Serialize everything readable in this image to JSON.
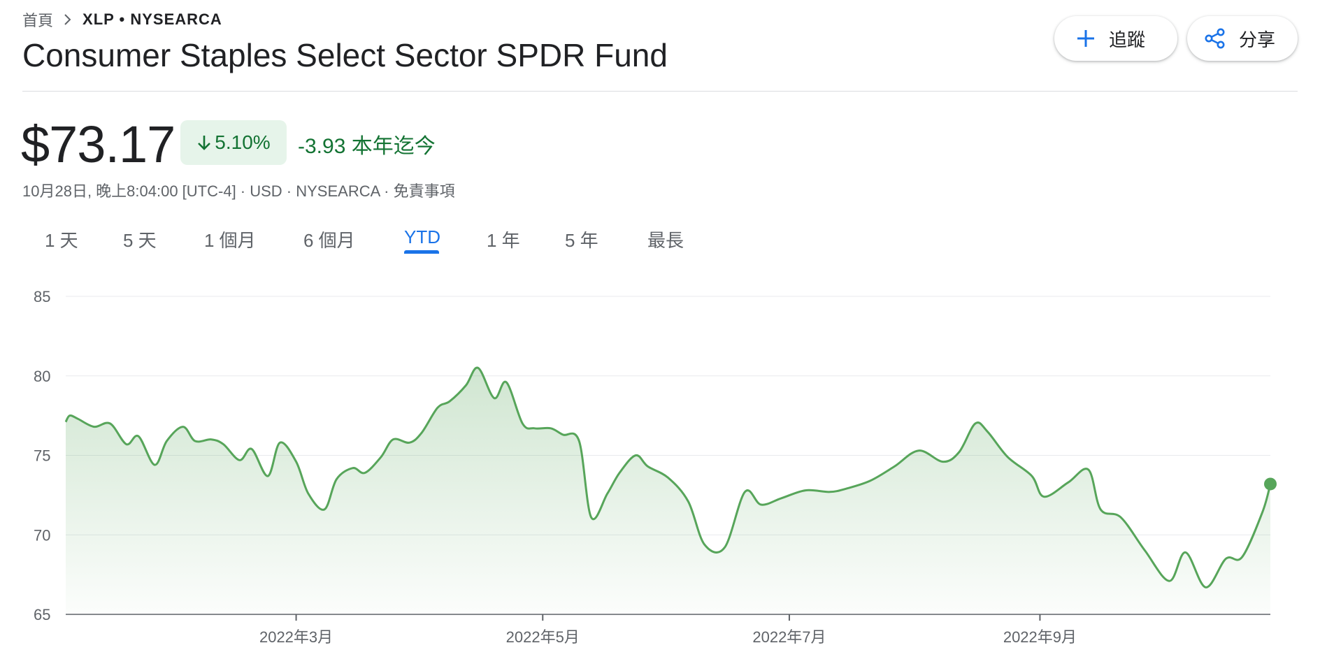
{
  "breadcrumb": {
    "home": "首頁",
    "ticker": "XLP • NYSEARCA"
  },
  "title": "Consumer Staples Select Sector SPDR Fund",
  "actions": {
    "follow_label": "追蹤",
    "share_label": "分享"
  },
  "quote": {
    "price": "$73.17",
    "change_percent": "5.10%",
    "change_text": "-3.93 本年迄今",
    "meta": "10月28日, 晚上8:04:00 [UTC-4] · USD · NYSEARCA · 免責事項",
    "direction": "down"
  },
  "tabs": [
    {
      "label": "1 天",
      "active": false
    },
    {
      "label": "5 天",
      "active": false
    },
    {
      "label": "1 個月",
      "active": false
    },
    {
      "label": "6 個月",
      "active": false
    },
    {
      "label": "YTD",
      "active": true
    },
    {
      "label": "1 年",
      "active": false
    },
    {
      "label": "5 年",
      "active": false
    },
    {
      "label": "最長",
      "active": false
    }
  ],
  "colors": {
    "line": "#57a55a",
    "positive": "#137333",
    "accent": "#1a73e8"
  },
  "icons": {
    "follow": "plus-icon",
    "share": "share-icon",
    "breadcrumb_separator": "chevron-right-icon",
    "change": "arrow-down-icon"
  },
  "chart_data": {
    "type": "area",
    "ylim": [
      65,
      85
    ],
    "yticks": [
      "85",
      "80",
      "75",
      "70",
      "65"
    ],
    "xtick_labels": [
      "2022年3月",
      "2022年5月",
      "2022年7月",
      "2022年9月"
    ],
    "xtick_dates": [
      "2022-03-01",
      "2022-05-01",
      "2022-07-01",
      "2022-09-01"
    ],
    "grid": true,
    "series": [
      {
        "x": [
          "2022-01-03",
          "2022-01-04",
          "2022-01-06",
          "2022-01-10",
          "2022-01-14",
          "2022-01-18",
          "2022-01-21",
          "2022-01-25",
          "2022-01-28",
          "2022-02-01",
          "2022-02-04",
          "2022-02-08",
          "2022-02-11",
          "2022-02-15",
          "2022-02-18",
          "2022-02-22",
          "2022-02-25",
          "2022-03-01",
          "2022-03-04",
          "2022-03-08",
          "2022-03-11",
          "2022-03-15",
          "2022-03-18",
          "2022-03-22",
          "2022-03-25",
          "2022-03-29",
          "2022-04-01",
          "2022-04-05",
          "2022-04-08",
          "2022-04-12",
          "2022-04-15",
          "2022-04-19",
          "2022-04-22",
          "2022-04-26",
          "2022-04-29",
          "2022-05-03",
          "2022-05-06",
          "2022-05-10",
          "2022-05-13",
          "2022-05-17",
          "2022-05-20",
          "2022-05-24",
          "2022-05-27",
          "2022-06-01",
          "2022-06-06",
          "2022-06-10",
          "2022-06-15",
          "2022-06-20",
          "2022-06-24",
          "2022-06-29",
          "2022-07-05",
          "2022-07-11",
          "2022-07-15",
          "2022-07-21",
          "2022-07-27",
          "2022-08-02",
          "2022-08-08",
          "2022-08-12",
          "2022-08-16",
          "2022-08-19",
          "2022-08-24",
          "2022-08-30",
          "2022-09-02",
          "2022-09-08",
          "2022-09-13",
          "2022-09-16",
          "2022-09-21",
          "2022-09-27",
          "2022-10-03",
          "2022-10-07",
          "2022-10-12",
          "2022-10-17",
          "2022-10-21",
          "2022-10-26",
          "2022-10-28"
        ],
        "values": [
          77.1,
          77.5,
          77.3,
          76.8,
          77.0,
          75.7,
          76.2,
          74.4,
          75.9,
          76.8,
          75.9,
          76.0,
          75.7,
          74.7,
          75.4,
          73.7,
          75.8,
          74.6,
          72.6,
          71.6,
          73.5,
          74.2,
          73.9,
          74.9,
          76.0,
          75.8,
          76.4,
          78.0,
          78.4,
          79.4,
          80.5,
          78.6,
          79.6,
          77.0,
          76.7,
          76.7,
          76.3,
          75.9,
          71.1,
          72.6,
          73.9,
          75.0,
          74.3,
          73.6,
          72.1,
          69.4,
          69.2,
          72.7,
          71.9,
          72.3,
          72.8,
          72.7,
          72.9,
          73.4,
          74.3,
          75.3,
          74.6,
          75.2,
          77.0,
          76.5,
          74.9,
          73.7,
          72.4,
          73.3,
          74.1,
          71.6,
          71.1,
          69.0,
          67.1,
          68.9,
          66.7,
          68.5,
          68.6,
          71.4,
          73.2
        ]
      }
    ]
  }
}
